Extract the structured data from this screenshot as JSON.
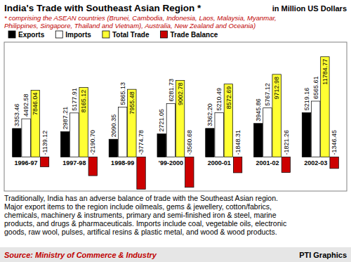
{
  "chart_data": {
    "type": "bar",
    "title": "India's Trade with Southeast Asian Region *",
    "subtitle": [
      "* comprising the ASEAN countries (Brunei, Cambodia, Indonesia, Laos, Malaysia, Myanmar,",
      "Philippines, Singapore, Thailand and Vietnam), Australia, New Zealand and Oceania)"
    ],
    "annotations": {
      "units": "in Million US Dollars",
      "notes": [
        "Traditionally, India has an adverse balance of trade with the Southeast Asian region.",
        "Major export items to the region include oilmeals, gems & jewellery, cotton/fabrics,",
        "chemicals, machinery & instruments, primary and semi-finished iron & steel, marine",
        "products, and drugs & pharmaceuticals. Imports include coal, vegetable oils, electronic",
        "goods, raw wool, pulses, artifical resins & plastic metal, and wood & wood products."
      ],
      "source": "Source: Ministry of Commerce & Industry",
      "credit": "PTI Graphics"
    },
    "categories": [
      "1996-97",
      "1997-98",
      "1998-99",
      "'99-2000",
      "2000-01",
      "2001-02",
      "2002-03"
    ],
    "series": [
      {
        "name": "Exports",
        "color": "#000000",
        "values": [
          3353.46,
          2987.21,
          2090.35,
          2721.05,
          3362.2,
          3945.86,
          5219.16
        ],
        "value_labels": [
          "3353.46",
          "2987.21",
          "2090.35",
          "2721.05",
          "3362.20",
          "3945.86",
          "5219.16"
        ]
      },
      {
        "name": "Imports",
        "color": "#ffffff",
        "values": [
          4492.58,
          5177.91,
          5865.13,
          6281.73,
          5210.49,
          5767.12,
          6565.61
        ],
        "value_labels": [
          "4492.58",
          "5177.91",
          "5865.13",
          "6281.73",
          "5210.49",
          "5767.12",
          "6565.61"
        ]
      },
      {
        "name": "Total Trade",
        "color": "#ffff33",
        "values": [
          7846.04,
          8165.12,
          7955.48,
          9002.78,
          8572.69,
          9712.98,
          11784.77
        ],
        "value_labels": [
          "7846.04",
          "8165.12",
          "7955.48",
          "9002.78",
          "8572.69",
          "9712.98",
          "11784.77"
        ]
      },
      {
        "name": "Trade Balance",
        "color": "#cc0000",
        "values": [
          -1139.12,
          -2190.7,
          -3774.78,
          -3560.68,
          -1848.31,
          -1821.26,
          -1346.45
        ],
        "value_labels": [
          "-1139.12",
          "-2190.70",
          "-3774.78",
          "-3560.68",
          "-1848.31",
          "-1821.26",
          "-1346.45"
        ]
      }
    ],
    "ylim": [
      -4000,
      13500
    ],
    "data_labels": true,
    "tick_labels": "x",
    "legend": "top-left"
  }
}
